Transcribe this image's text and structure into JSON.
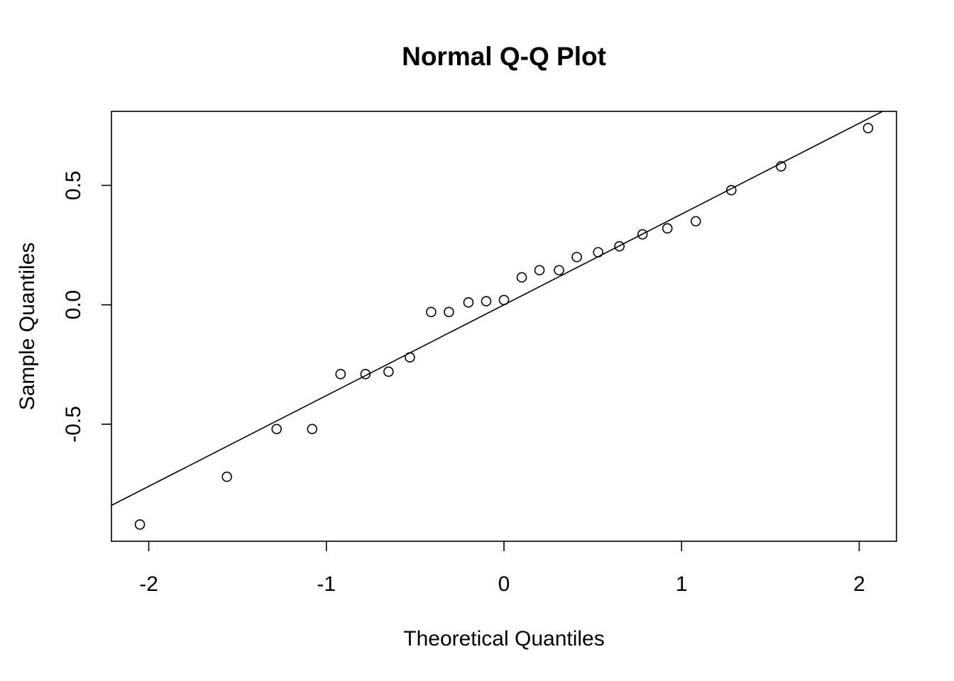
{
  "chart_data": {
    "type": "scatter",
    "title": "Normal Q-Q Plot",
    "xlabel": "Theoretical Quantiles",
    "ylabel": "Sample Quantiles",
    "xlim": [
      -2.21,
      2.21
    ],
    "ylim": [
      -0.99,
      0.81
    ],
    "x_ticks": [
      -2,
      -1,
      0,
      1,
      2
    ],
    "x_tick_labels": [
      "-2",
      "-1",
      "0",
      "1",
      "2"
    ],
    "y_ticks": [
      -0.5,
      0.0,
      0.5
    ],
    "y_tick_labels": [
      "-0.5",
      "0.0",
      "0.5"
    ],
    "grid": false,
    "legend": "none",
    "reference_line": {
      "intercept": 0.0,
      "slope": 0.38
    },
    "points": [
      {
        "x": -2.05,
        "y": -0.92
      },
      {
        "x": -1.56,
        "y": -0.72
      },
      {
        "x": -1.28,
        "y": -0.52
      },
      {
        "x": -1.08,
        "y": -0.52
      },
      {
        "x": -0.92,
        "y": -0.29
      },
      {
        "x": -0.78,
        "y": -0.29
      },
      {
        "x": -0.65,
        "y": -0.28
      },
      {
        "x": -0.53,
        "y": -0.22
      },
      {
        "x": -0.41,
        "y": -0.03
      },
      {
        "x": -0.31,
        "y": -0.03
      },
      {
        "x": -0.2,
        "y": 0.01
      },
      {
        "x": -0.1,
        "y": 0.015
      },
      {
        "x": 0.0,
        "y": 0.02
      },
      {
        "x": 0.1,
        "y": 0.115
      },
      {
        "x": 0.2,
        "y": 0.145
      },
      {
        "x": 0.31,
        "y": 0.145
      },
      {
        "x": 0.41,
        "y": 0.2
      },
      {
        "x": 0.53,
        "y": 0.22
      },
      {
        "x": 0.65,
        "y": 0.245
      },
      {
        "x": 0.78,
        "y": 0.295
      },
      {
        "x": 0.92,
        "y": 0.32
      },
      {
        "x": 1.08,
        "y": 0.35
      },
      {
        "x": 1.28,
        "y": 0.48
      },
      {
        "x": 1.56,
        "y": 0.58
      },
      {
        "x": 2.05,
        "y": 0.74
      }
    ]
  }
}
